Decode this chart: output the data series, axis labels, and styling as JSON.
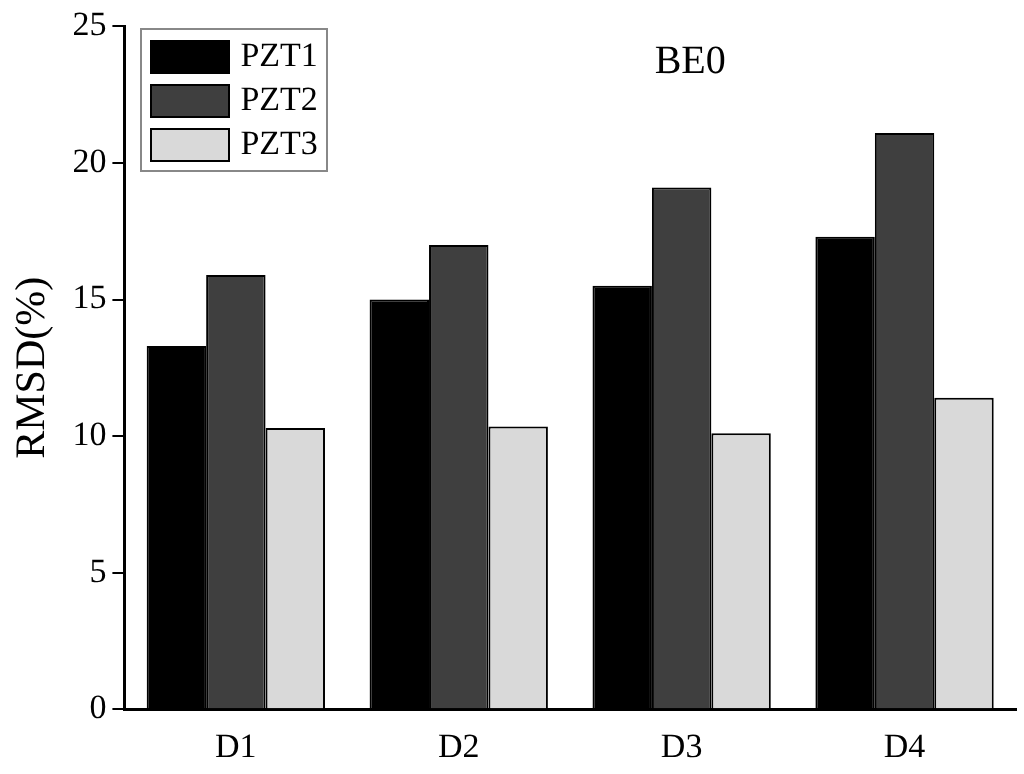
{
  "chart_data": {
    "type": "bar",
    "title": "BE0",
    "ylabel": "RMSD(%)",
    "categories": [
      "D1",
      "D2",
      "D3",
      "D4"
    ],
    "series": [
      {
        "name": "PZT1",
        "color": "#000000",
        "values": [
          13.3,
          15.0,
          15.5,
          17.3
        ]
      },
      {
        "name": "PZT2",
        "color": "#3f3f3f",
        "values": [
          15.9,
          17.0,
          19.1,
          21.1
        ]
      },
      {
        "name": "PZT3",
        "color": "#d9d9d9",
        "values": [
          10.3,
          10.35,
          10.1,
          11.4
        ]
      }
    ],
    "ylim": [
      0,
      25
    ],
    "yticks": [
      0,
      5,
      10,
      15,
      20,
      25
    ],
    "grid": false,
    "legend": "top left"
  }
}
